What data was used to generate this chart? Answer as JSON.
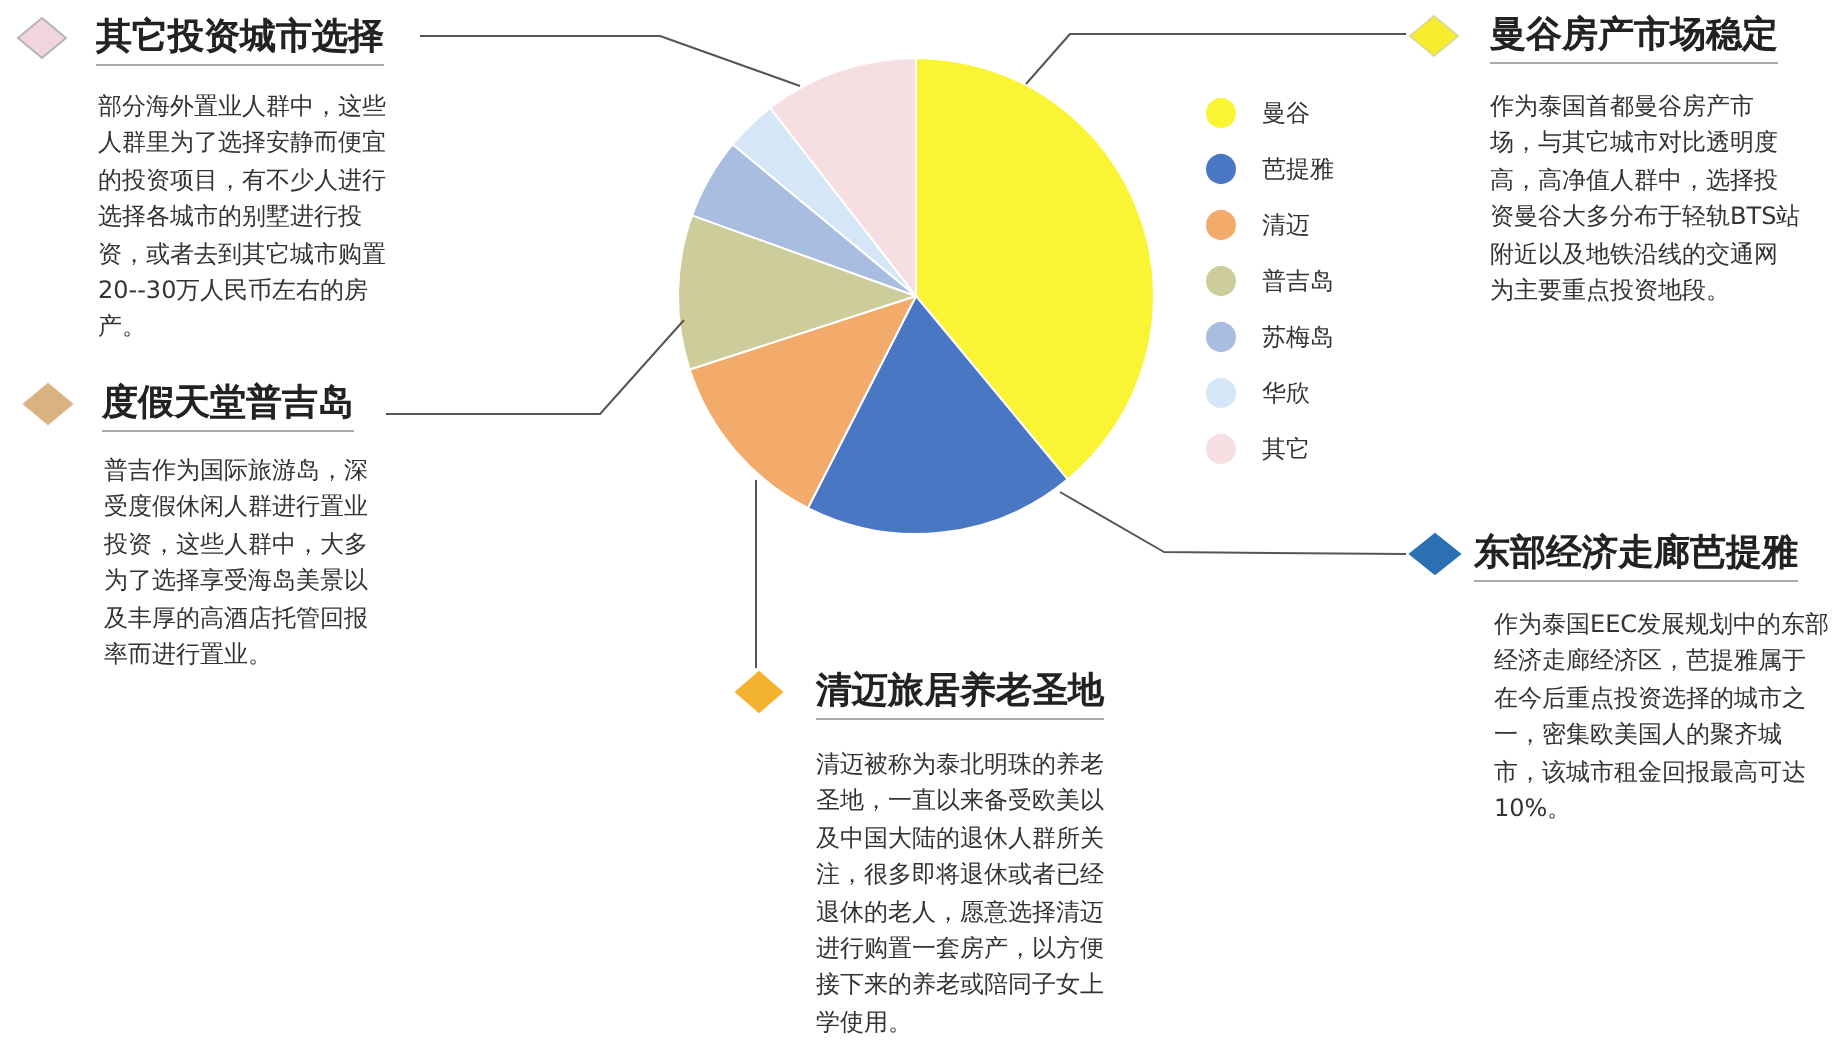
{
  "chart_data": {
    "type": "pie",
    "categories": [
      "曼谷",
      "芭提雅",
      "清迈",
      "普吉岛",
      "苏梅岛",
      "华欣",
      "其它"
    ],
    "values": [
      39,
      18.5,
      12.5,
      10.5,
      5.5,
      3.5,
      10.5
    ],
    "colors": [
      "#f9f534",
      "#4a77c3",
      "#f3ab6b",
      "#cdcc9b",
      "#a9bde0",
      "#d5e7f6",
      "#f6dfe2"
    ],
    "legend": "right",
    "annotations": [
      "其它投资城市选择",
      "部分海外置业人群中，这些人群里为了选择安静而便宜的投资项目，有不少人进行选择各城市的别墅进行投资，或者去到其它城市购置20--30万人民币左右的房产。",
      "曼谷房产市场稳定",
      "作为泰国首都曼谷房产市场，与其它城市对比透明度高，高净值人群中，选择投资曼谷大多分布于轻轨BTS站附近以及地铁沿线的交通网为主要重点投资地段。",
      "度假天堂普吉岛",
      "普吉作为国际旅游岛，深受度假休闲人群进行置业投资，这些人群中，大多为了选择享受海岛美景以及丰厚的高酒店托管回报率而进行置业。",
      "东部经济走廊芭提雅",
      "作为泰国EEC发展规划中的东部经济走廊经济区，芭提雅属于在今后重点投资选择的城市之一，密集欧美国人的聚齐城市，该城市租金回报最高可达10%。",
      "清迈旅居养老圣地",
      "清迈被称为泰北明珠的养老圣地，一直以来备受欧美以及中国大陆的退休人群所关注，很多即将退休或者已经退休的老人，愿意选择清迈进行购置一套房产，以方便接下来的养老或陪同子女上学使用。"
    ]
  }
}
